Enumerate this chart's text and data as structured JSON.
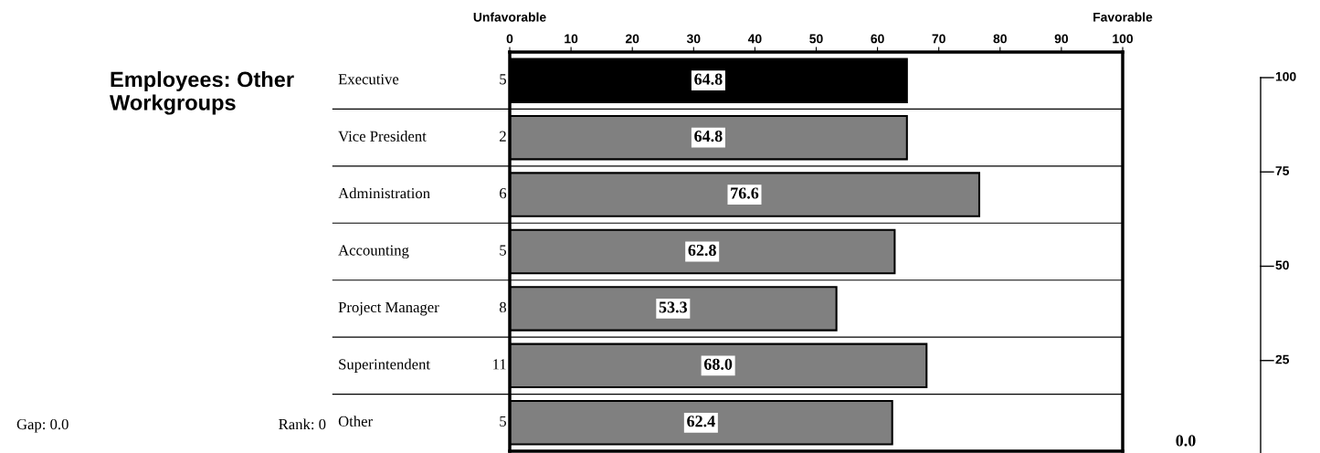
{
  "chart_data": [
    {
      "type": "bar",
      "orientation": "horizontal",
      "title": "Employees: Other Workgroups",
      "categories": [
        "Executive",
        "Vice President",
        "Administration",
        "Accounting",
        "Project Manager",
        "Superintendent",
        "Other"
      ],
      "values": [
        64.8,
        64.8,
        76.6,
        62.8,
        53.3,
        68.0,
        62.4
      ],
      "colors": [
        "#000000",
        "#808080",
        "#808080",
        "#808080",
        "#808080",
        "#808080",
        "#808080"
      ],
      "value_labels": [
        "64.8",
        "64.8",
        "76.6",
        "62.8",
        "53.3",
        "68.0",
        "62.4"
      ],
      "xlim": [
        0,
        100
      ],
      "xticks": [
        0,
        10,
        20,
        30,
        40,
        50,
        60,
        70,
        80,
        90,
        100
      ],
      "grid": false,
      "legend": false,
      "annotations": [
        "Unfavorable",
        "Favorable",
        "5",
        "2",
        "6",
        "5",
        "8",
        "11",
        "5",
        "Gap: 0.0",
        "Rank: 0",
        "100",
        "75",
        "50",
        "25",
        "0.0"
      ]
    }
  ]
}
